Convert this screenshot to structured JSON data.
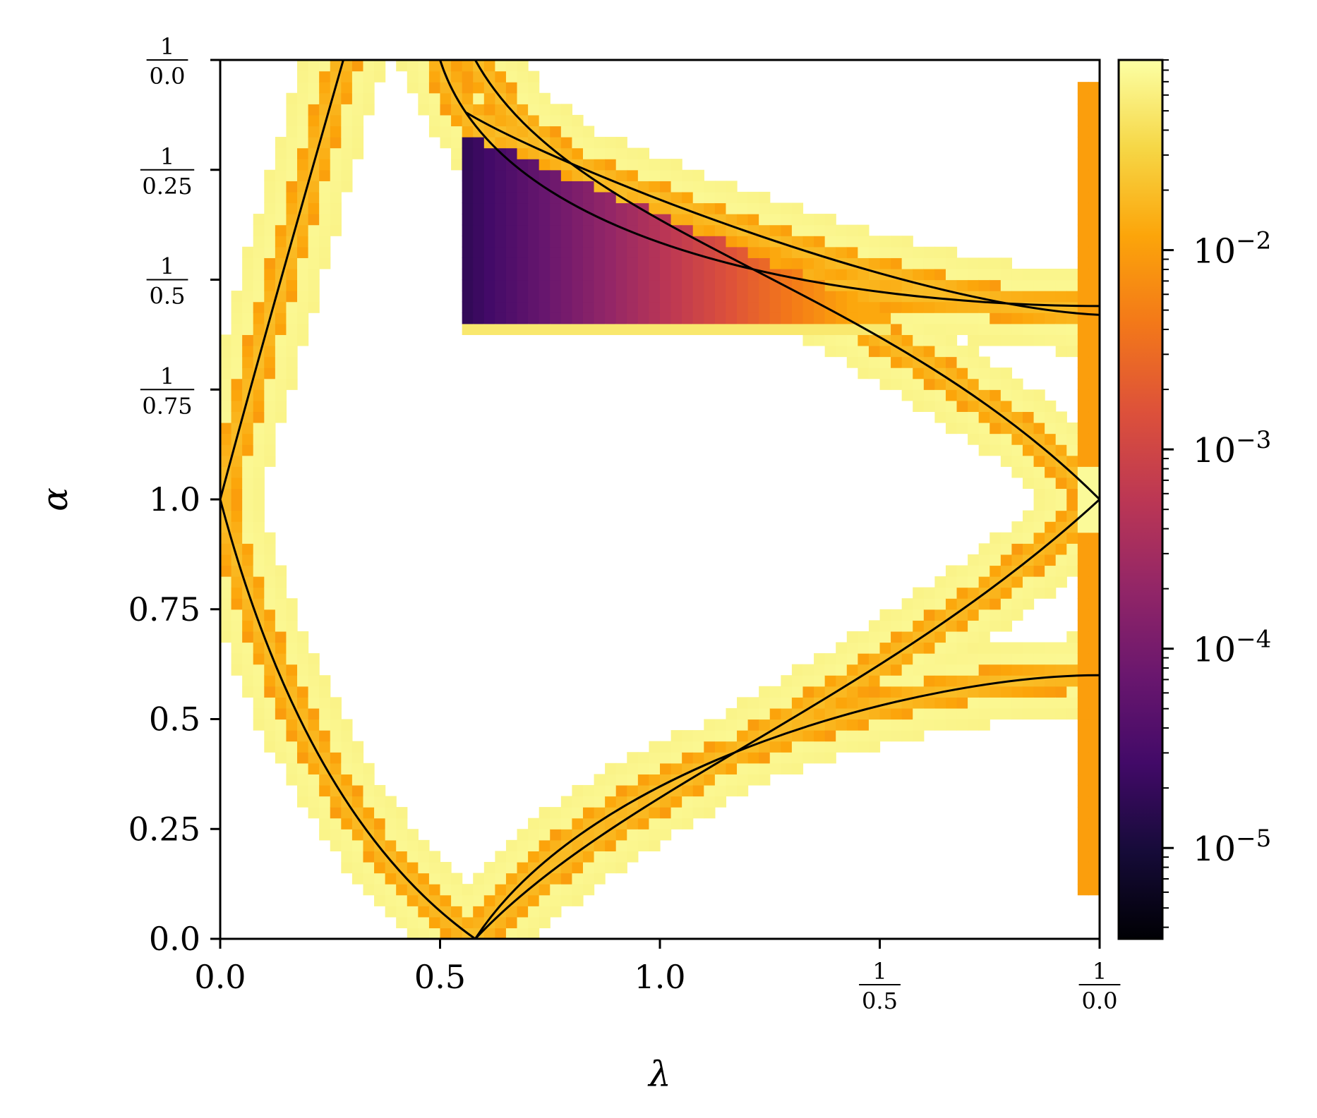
{
  "chart_data": {
    "type": "heatmap",
    "title": "",
    "xlabel": "λ",
    "ylabel": "α",
    "x_scale": "piecewise: linear on [0,1], reciprocal 1/x on [1,∞)",
    "y_scale": "piecewise: linear on [0,1], reciprocal 1/x on [1,∞)",
    "xlim": [
      0,
      "∞"
    ],
    "ylim": [
      0,
      "∞"
    ],
    "x_ticks": [
      {
        "value": 0.0,
        "label": "0.0",
        "kind": "plain"
      },
      {
        "value": 0.5,
        "label": "0.5",
        "kind": "plain"
      },
      {
        "value": 1.0,
        "label": "1.0",
        "kind": "plain"
      },
      {
        "value": 2.0,
        "num": "1",
        "den": "0.5",
        "kind": "frac"
      },
      {
        "value": "∞",
        "num": "1",
        "den": "0.0",
        "kind": "frac"
      }
    ],
    "y_ticks": [
      {
        "value": 0.0,
        "label": "0.0",
        "kind": "plain"
      },
      {
        "value": 0.25,
        "label": "0.25",
        "kind": "plain"
      },
      {
        "value": 0.5,
        "label": "0.5",
        "kind": "plain"
      },
      {
        "value": 0.75,
        "label": "0.75",
        "kind": "plain"
      },
      {
        "value": 1.0,
        "label": "1.0",
        "kind": "plain"
      },
      {
        "value": 1.3333,
        "num": "1",
        "den": "0.75",
        "kind": "frac"
      },
      {
        "value": 2.0,
        "num": "1",
        "den": "0.5",
        "kind": "frac"
      },
      {
        "value": 4.0,
        "num": "1",
        "den": "0.25",
        "kind": "frac"
      },
      {
        "value": "∞",
        "num": "1",
        "den": "0.0",
        "kind": "frac"
      }
    ],
    "colorbar": {
      "scale": "log",
      "colormap": "inferno",
      "range": [
        3.5e-06,
        0.09
      ],
      "ticks": [
        {
          "value": 1e-05,
          "base": "10",
          "exp": "−5"
        },
        {
          "value": 0.0001,
          "base": "10",
          "exp": "−4"
        },
        {
          "value": 0.001,
          "base": "10",
          "exp": "−3"
        },
        {
          "value": 0.01,
          "base": "10",
          "exp": "−2"
        }
      ]
    },
    "grid": false,
    "overlay_curves_color": "#000000"
  }
}
